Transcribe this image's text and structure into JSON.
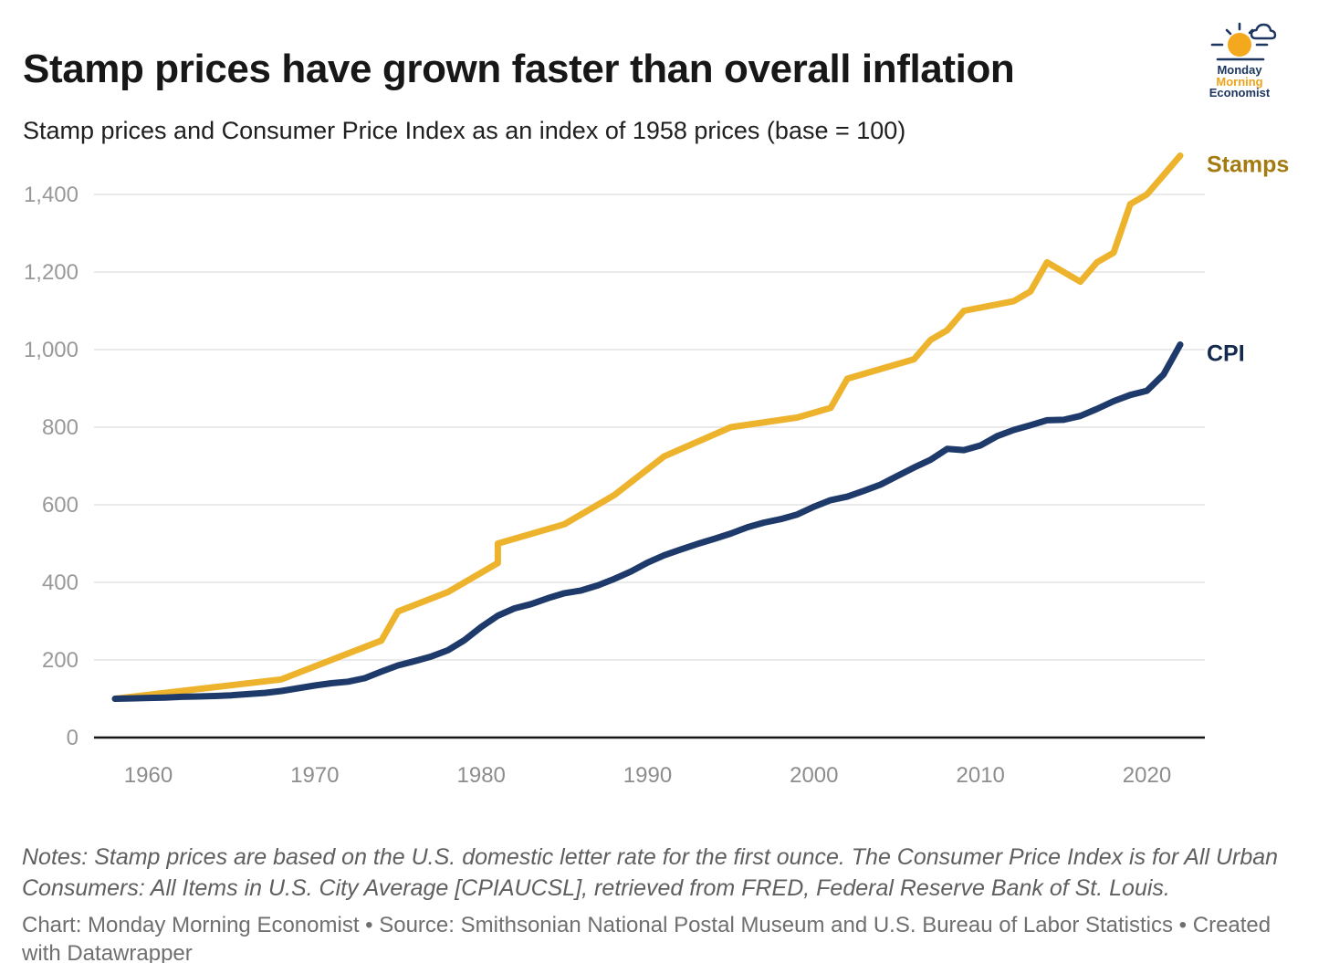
{
  "header": {
    "title": "Stamp prices have grown faster than overall inflation",
    "subtitle": "Stamp prices and Consumer Price Index as an index of 1958 prices (base = 100)"
  },
  "logo": {
    "line1": "Monday",
    "line2": "Morning",
    "line3": "Economist",
    "navy": "#1D3660",
    "gold": "#F0A31B",
    "icon": "sun-cloud-horizon-icon"
  },
  "chart_data": {
    "type": "line",
    "title": "Stamp prices have grown faster than overall inflation",
    "subtitle": "Stamp prices and Consumer Price Index as an index of 1958 prices (base = 100)",
    "xlabel": "",
    "ylabel": "",
    "xlim": [
      1958,
      2022
    ],
    "ylim": [
      0,
      1500
    ],
    "grid": "horizontal",
    "legend_position": "line-end-labels",
    "x_ticks": [
      1960,
      1970,
      1980,
      1990,
      2000,
      2010,
      2020
    ],
    "y_ticks": [
      0,
      200,
      400,
      600,
      800,
      1000,
      1200,
      1400
    ],
    "y_tick_labels": [
      "0",
      "200",
      "400",
      "600",
      "800",
      "1,000",
      "1,200",
      "1,400"
    ],
    "series": [
      {
        "name": "Stamps",
        "color": "#EDB32C",
        "label_color": "#A47B10",
        "points": [
          [
            1958,
            100
          ],
          [
            1963,
            125
          ],
          [
            1968,
            150
          ],
          [
            1971,
            200
          ],
          [
            1974,
            250
          ],
          [
            1975,
            325
          ],
          [
            1978,
            375
          ],
          [
            1981,
            450
          ],
          [
            1981,
            500
          ],
          [
            1985,
            550
          ],
          [
            1988,
            625
          ],
          [
            1991,
            725
          ],
          [
            1995,
            800
          ],
          [
            1999,
            825
          ],
          [
            2001,
            850
          ],
          [
            2002,
            925
          ],
          [
            2006,
            975
          ],
          [
            2007,
            1025
          ],
          [
            2008,
            1050
          ],
          [
            2009,
            1100
          ],
          [
            2012,
            1125
          ],
          [
            2013,
            1150
          ],
          [
            2014,
            1225
          ],
          [
            2016,
            1175
          ],
          [
            2017,
            1225
          ],
          [
            2018,
            1250
          ],
          [
            2019,
            1375
          ],
          [
            2020,
            1400
          ],
          [
            2021,
            1450
          ],
          [
            2022,
            1500
          ]
        ]
      },
      {
        "name": "CPI",
        "color": "#1E3A6B",
        "label_color": "#13294E",
        "points": [
          [
            1958,
            100
          ],
          [
            1959,
            101
          ],
          [
            1960,
            102
          ],
          [
            1961,
            103
          ],
          [
            1962,
            105
          ],
          [
            1963,
            106
          ],
          [
            1964,
            107
          ],
          [
            1965,
            109
          ],
          [
            1966,
            112
          ],
          [
            1967,
            115
          ],
          [
            1968,
            120
          ],
          [
            1969,
            127
          ],
          [
            1970,
            134
          ],
          [
            1971,
            140
          ],
          [
            1972,
            144
          ],
          [
            1973,
            153
          ],
          [
            1974,
            170
          ],
          [
            1975,
            186
          ],
          [
            1976,
            197
          ],
          [
            1977,
            209
          ],
          [
            1978,
            225
          ],
          [
            1979,
            251
          ],
          [
            1980,
            285
          ],
          [
            1981,
            314
          ],
          [
            1982,
            333
          ],
          [
            1983,
            344
          ],
          [
            1984,
            359
          ],
          [
            1985,
            372
          ],
          [
            1986,
            379
          ],
          [
            1987,
            392
          ],
          [
            1988,
            409
          ],
          [
            1989,
            428
          ],
          [
            1990,
            451
          ],
          [
            1991,
            470
          ],
          [
            1992,
            485
          ],
          [
            1993,
            499
          ],
          [
            1994,
            512
          ],
          [
            1995,
            526
          ],
          [
            1996,
            542
          ],
          [
            1997,
            554
          ],
          [
            1998,
            563
          ],
          [
            1999,
            575
          ],
          [
            2000,
            595
          ],
          [
            2001,
            612
          ],
          [
            2002,
            621
          ],
          [
            2003,
            636
          ],
          [
            2004,
            652
          ],
          [
            2005,
            674
          ],
          [
            2006,
            696
          ],
          [
            2007,
            716
          ],
          [
            2008,
            744
          ],
          [
            2009,
            741
          ],
          [
            2010,
            753
          ],
          [
            2011,
            777
          ],
          [
            2012,
            793
          ],
          [
            2013,
            805
          ],
          [
            2014,
            818
          ],
          [
            2015,
            819
          ],
          [
            2016,
            829
          ],
          [
            2017,
            847
          ],
          [
            2018,
            867
          ],
          [
            2019,
            883
          ],
          [
            2020,
            894
          ],
          [
            2021,
            936
          ],
          [
            2022,
            1013
          ]
        ]
      }
    ]
  },
  "footer": {
    "notes": "Notes: Stamp prices are based on the U.S. domestic letter rate for the first ounce. The Consumer Price Index is for All Urban Consumers: All Items in U.S. City Average [CPIAUCSL], retrieved from FRED, Federal Reserve Bank of St. Louis.",
    "caption": "Chart: Monday Morning Economist • Source: Smithsonian National Postal Museum and U.S. Bureau of Labor Statistics • Created with Datawrapper"
  }
}
